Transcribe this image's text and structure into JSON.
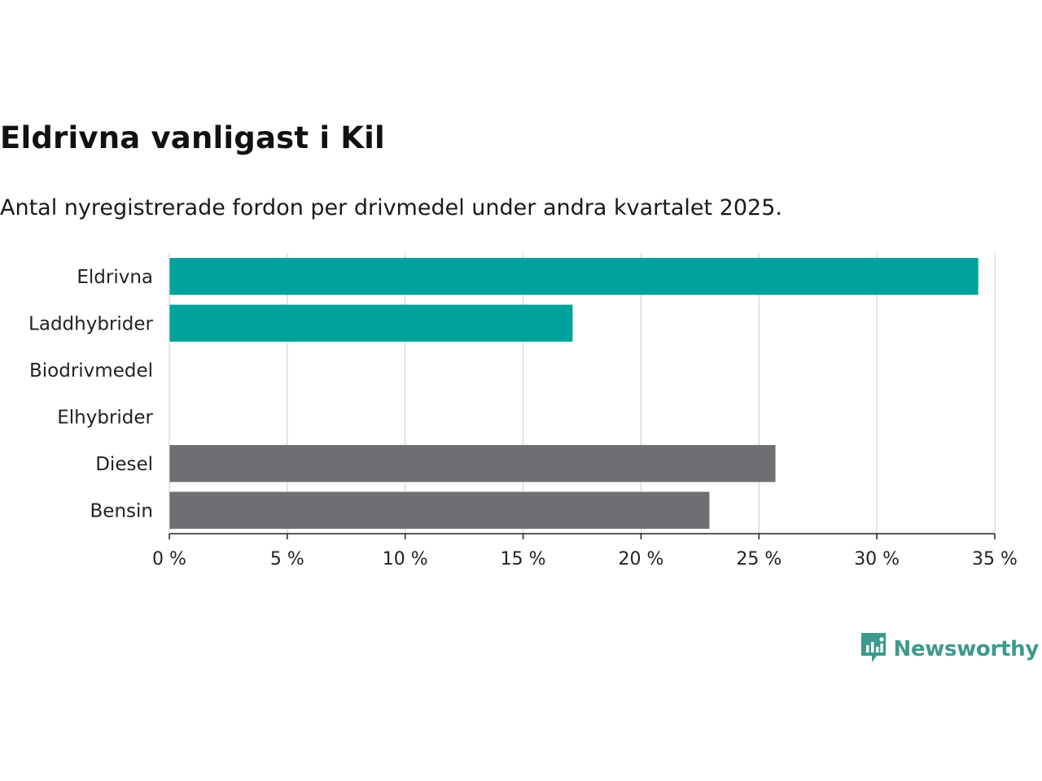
{
  "title": "Eldrivna vanligast i Kil",
  "subtitle": "Antal nyregistrerade fordon per drivmedel under andra kvartalet 2025.",
  "brand": {
    "name": "Newsworthy",
    "icon": "newsworthy-logo-icon",
    "color": "#3d9a8c"
  },
  "colors": {
    "highlight": "#00a39b",
    "other": "#6f6e73",
    "grid": "#dcdcdc",
    "axis": "#222222"
  },
  "chart_data": {
    "type": "bar",
    "orientation": "horizontal",
    "categories": [
      "Eldrivna",
      "Laddhybrider",
      "Biodrivmedel",
      "Elhybrider",
      "Diesel",
      "Bensin"
    ],
    "values": [
      34.3,
      17.1,
      0,
      0,
      25.7,
      22.9
    ],
    "bar_colors": [
      "#00a39b",
      "#00a39b",
      "#00a39b",
      "#00a39b",
      "#6f6e73",
      "#6f6e73"
    ],
    "xlim": [
      0,
      35
    ],
    "xticks": [
      0,
      5,
      10,
      15,
      20,
      25,
      30,
      35
    ],
    "xtick_labels": [
      "0 %",
      "5 %",
      "10 %",
      "15 %",
      "20 %",
      "25 %",
      "30 %",
      "35 %"
    ],
    "grid": true,
    "xlabel": "",
    "ylabel": ""
  }
}
